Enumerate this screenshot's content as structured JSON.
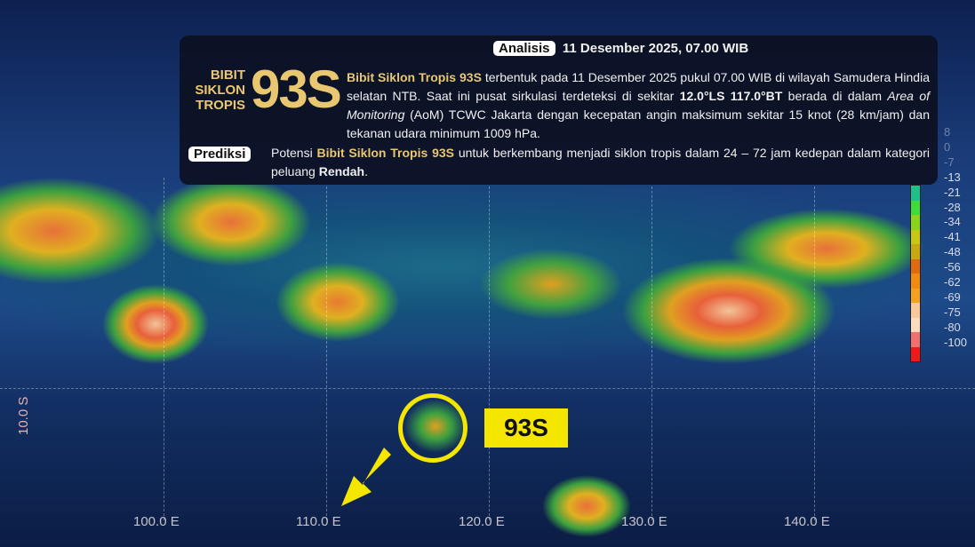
{
  "header": {
    "analysis_tag": "Analisis",
    "analysis_time": "11 Desember 2025, 07.00 WIB"
  },
  "title": {
    "line1": "BIBIT",
    "line2": "SIKLON",
    "line3": "TROPIS",
    "code": "93S"
  },
  "description": {
    "p1_bold": "Bibit Siklon Tropis 93S",
    "p1": " terbentuk pada 11 Desember 2025 pukul 07.00 WIB di wilayah Samudera Hindia selatan NTB. Saat ini pusat sirkulasi terdeteksi di sekitar ",
    "coord": "12.0°LS 117.0°BT",
    "p2": " berada di dalam ",
    "aom": "Area of Monitoring",
    "p3": " (AoM) TCWC Jakarta dengan kecepatan angin maksimum sekitar 15 knot (28 km/jam) dan tekanan udara minimum 1009 hPa."
  },
  "prediction": {
    "tag": "Prediksi",
    "t1": "Potensi ",
    "bold": "Bibit Siklon Tropis 93S",
    "t2": " untuk berkembang menjadi siklon tropis dalam 24 – 72 jam kedepan dalam kategori peluang ",
    "level": "Rendah",
    "t3": "."
  },
  "colorbar": {
    "ticks": [
      "8",
      "0",
      "-7",
      "-13",
      "-21",
      "-28",
      "-34",
      "-41",
      "-48",
      "-56",
      "-62",
      "-69",
      "-75",
      "-80",
      "-100"
    ],
    "colors": [
      "#1fbf8a",
      "#3ddc3a",
      "#8ad41c",
      "#c8c814",
      "#c8a810",
      "#e06a10",
      "#f08a10",
      "#f4a020",
      "#f8c898",
      "#fcdcc0",
      "#f07070",
      "#f01818"
    ]
  },
  "map": {
    "lon_labels": [
      "100.0 E",
      "110.0 E",
      "120.0 E",
      "130.0 E",
      "140.0 E"
    ],
    "lat_label": "10.0 S",
    "marker_label": "93S",
    "highlight_color": "#f5e600"
  }
}
